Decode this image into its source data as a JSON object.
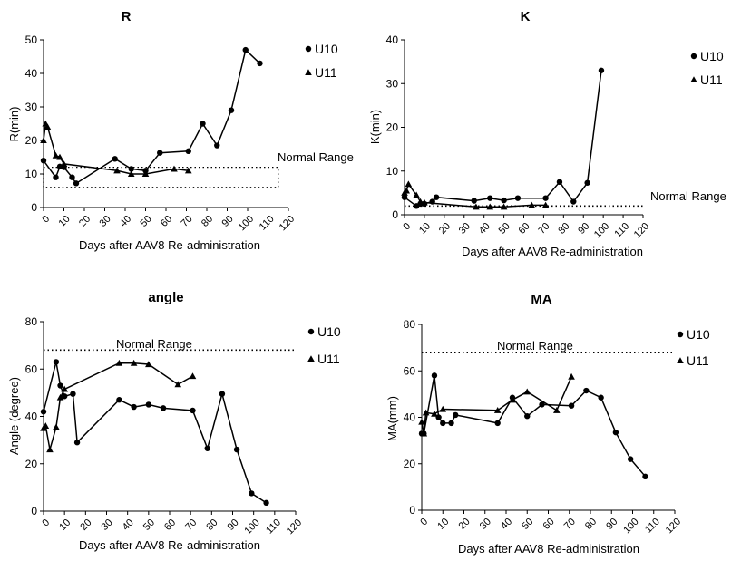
{
  "chart_data": [
    {
      "type": "line",
      "title": "R",
      "xlabel": "Days after AAV8 Re-administration",
      "ylabel": "R(min)",
      "xlim": [
        0,
        120
      ],
      "ylim": [
        0,
        50
      ],
      "xticks": [
        "0",
        "10",
        "20",
        "30",
        "40",
        "50",
        "60",
        "70",
        "80",
        "90",
        "100",
        "110",
        "120"
      ],
      "yticks": [
        "0",
        "10",
        "20",
        "30",
        "40",
        "50"
      ],
      "legend_position": "top-right",
      "normal_range": {
        "label": "Normal Range",
        "shape": "box",
        "ymin": 6,
        "ymax": 12,
        "xmin": 0,
        "xmax": 115
      },
      "series": [
        {
          "name": "U10",
          "marker": "circle",
          "x": [
            0,
            6,
            8,
            10,
            14,
            16,
            35,
            43,
            50,
            57,
            71,
            78,
            85,
            92,
            99,
            106
          ],
          "y": [
            14,
            9,
            12.2,
            12,
            9,
            7.2,
            14.5,
            11.5,
            11,
            16.3,
            16.8,
            25,
            18.5,
            29,
            47,
            43
          ]
        },
        {
          "name": "U11",
          "marker": "triangle",
          "x": [
            0,
            1,
            2,
            6,
            8,
            10,
            36,
            43,
            50,
            64,
            71
          ],
          "y": [
            20,
            25,
            24,
            15.5,
            15,
            13,
            11,
            10,
            10,
            11.5,
            11
          ]
        }
      ]
    },
    {
      "type": "line",
      "title": "K",
      "xlabel": "Days after AAV8 Re-administration",
      "ylabel": "K(min)",
      "xlim": [
        0,
        120
      ],
      "ylim": [
        0,
        40
      ],
      "xticks": [
        "0",
        "10",
        "20",
        "30",
        "40",
        "50",
        "60",
        "70",
        "80",
        "90",
        "100",
        "110",
        "120"
      ],
      "yticks": [
        "0",
        "10",
        "20",
        "30",
        "40"
      ],
      "legend_position": "top-right",
      "normal_range": {
        "label": "Normal Range",
        "shape": "line",
        "y": 2
      },
      "series": [
        {
          "name": "U10",
          "marker": "circle",
          "x": [
            0,
            6,
            8,
            10,
            14,
            16,
            35,
            43,
            50,
            57,
            71,
            78,
            85,
            92,
            99
          ],
          "y": [
            4,
            2,
            2.5,
            2.5,
            3,
            4,
            3.2,
            3.8,
            3.3,
            3.8,
            3.8,
            7.5,
            3,
            7.3,
            33
          ]
        },
        {
          "name": "U11",
          "marker": "triangle",
          "x": [
            0,
            1,
            2,
            6,
            8,
            10,
            36,
            43,
            50,
            64,
            71
          ],
          "y": [
            5,
            5.5,
            7,
            4.5,
            3,
            2.8,
            1.8,
            1.8,
            1.8,
            2.2,
            2.2
          ]
        }
      ]
    },
    {
      "type": "line",
      "title": "angle",
      "xlabel": "Days after AAV8 Re-administration",
      "ylabel": "Angle (degree)",
      "xlim": [
        0,
        120
      ],
      "ylim": [
        0,
        80
      ],
      "xticks": [
        "0",
        "10",
        "20",
        "30",
        "40",
        "50",
        "60",
        "70",
        "80",
        "90",
        "100",
        "110",
        "120"
      ],
      "yticks": [
        "0",
        "20",
        "40",
        "60",
        "80"
      ],
      "legend_position": "top-right",
      "normal_range": {
        "label": "Normal Range",
        "shape": "line",
        "y": 68
      },
      "series": [
        {
          "name": "U10",
          "marker": "circle",
          "x": [
            0,
            6,
            8,
            10,
            14,
            16,
            36,
            43,
            50,
            57,
            71,
            78,
            85,
            92,
            99,
            106
          ],
          "y": [
            42,
            63,
            53,
            48.5,
            49.5,
            29,
            47,
            44,
            45,
            43.5,
            42.5,
            26.5,
            49.5,
            26,
            7.5,
            3.5
          ]
        },
        {
          "name": "U11",
          "marker": "triangle",
          "x": [
            0,
            1,
            3,
            6,
            8,
            10,
            36,
            43,
            50,
            64,
            71
          ],
          "y": [
            35,
            36,
            26,
            35.5,
            48,
            51.5,
            62.5,
            62.5,
            62,
            53.5,
            57
          ]
        }
      ]
    },
    {
      "type": "line",
      "title": "MA",
      "xlabel": "Days after AAV8 Re-administration",
      "ylabel": "MA(mm)",
      "xlim": [
        0,
        120
      ],
      "ylim": [
        0,
        80
      ],
      "xticks": [
        "0",
        "10",
        "20",
        "30",
        "40",
        "50",
        "60",
        "70",
        "80",
        "90",
        "100",
        "110",
        "120"
      ],
      "yticks": [
        "0",
        "20",
        "40",
        "60",
        "80"
      ],
      "legend_position": "top-right",
      "normal_range": {
        "label": "Normal Range",
        "shape": "line",
        "y": 68
      },
      "series": [
        {
          "name": "U10",
          "marker": "circle",
          "x": [
            0,
            1,
            6,
            8,
            10,
            14,
            16,
            36,
            43,
            50,
            57,
            71,
            78,
            85,
            92,
            99,
            106
          ],
          "y": [
            33,
            33,
            58,
            40,
            37.5,
            37.5,
            41,
            37.5,
            48.5,
            40.5,
            45.5,
            45,
            51.5,
            48.5,
            33.5,
            22,
            14.5
          ]
        },
        {
          "name": "U11",
          "marker": "triangle",
          "x": [
            0,
            1,
            2,
            6,
            10,
            36,
            43,
            50,
            64,
            71
          ],
          "y": [
            38,
            33,
            42,
            41.5,
            43.5,
            43,
            47.5,
            51,
            43,
            57.5
          ]
        }
      ]
    }
  ]
}
